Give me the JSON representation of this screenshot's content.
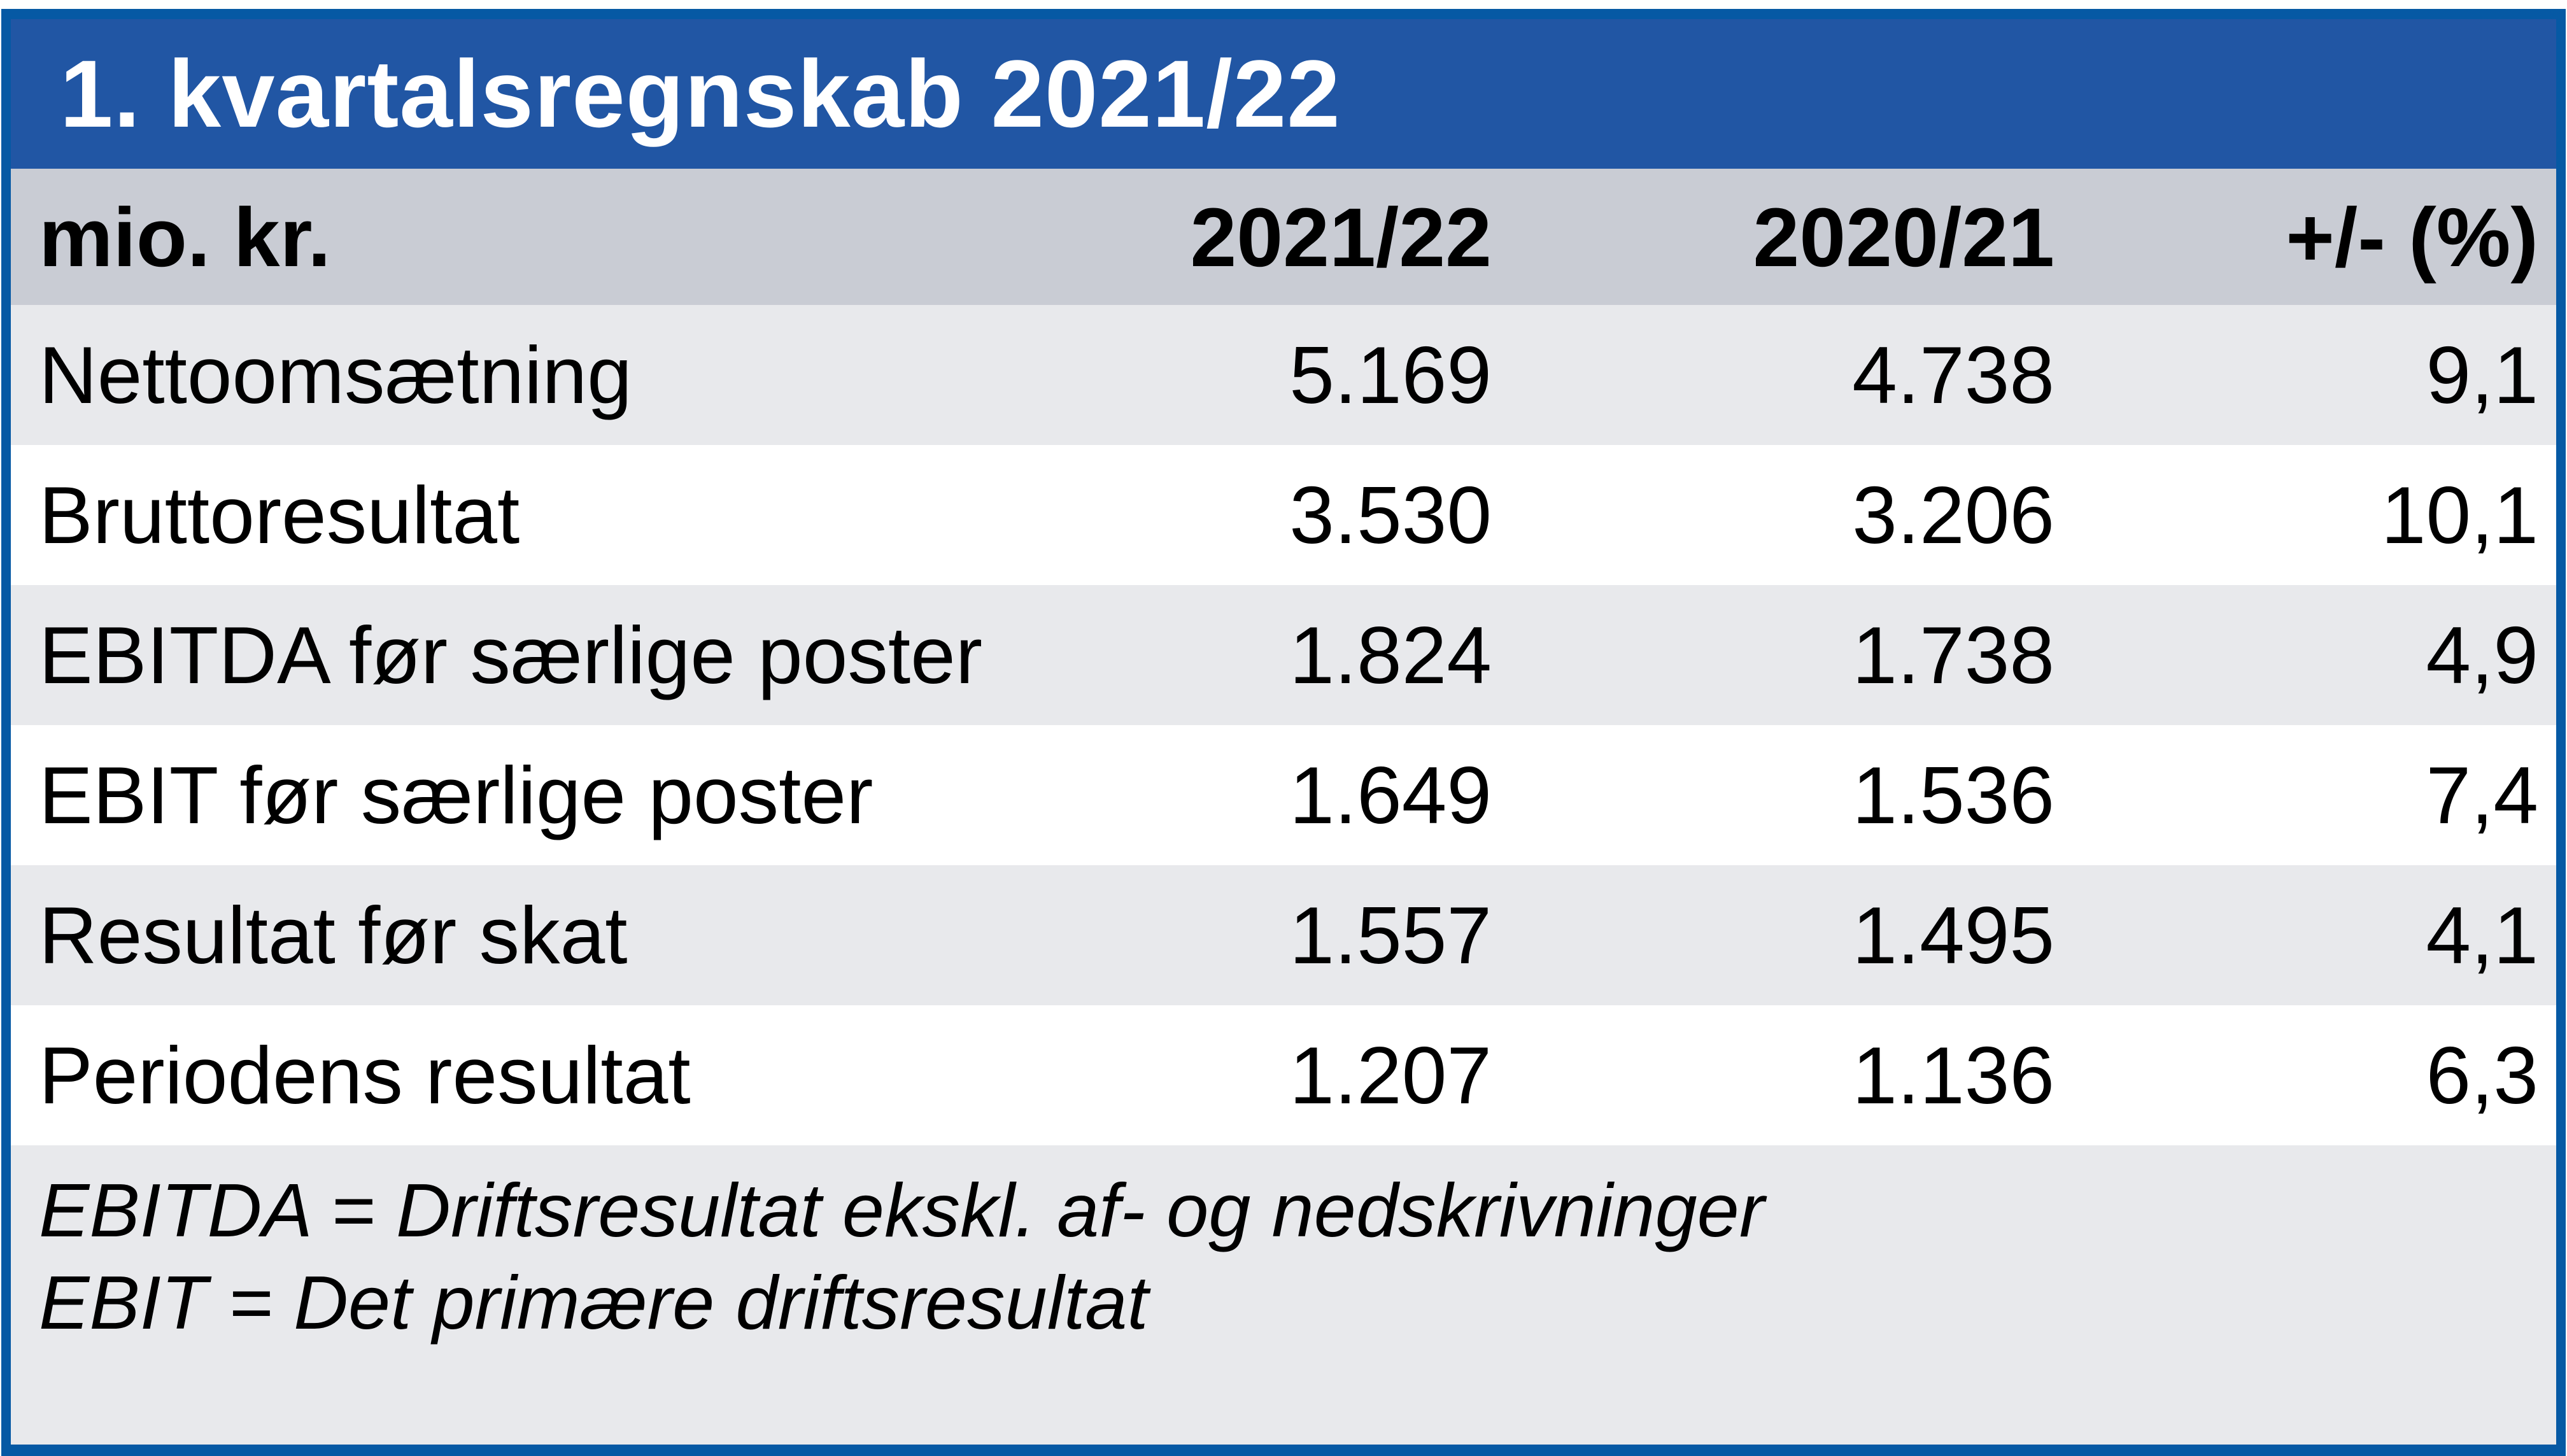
{
  "title": "1. kvartalsregnskab 2021/22",
  "table": {
    "columns": [
      "mio. kr.",
      "2021/22",
      "2020/21",
      "+/- (%)"
    ],
    "rows": [
      {
        "label": "Nettoomsætning",
        "fy2122": "5.169",
        "fy2021": "4.738",
        "change": "9,1"
      },
      {
        "label": "Bruttoresultat",
        "fy2122": "3.530",
        "fy2021": "3.206",
        "change": "10,1"
      },
      {
        "label": "EBITDA før særlige poster",
        "fy2122": "1.824",
        "fy2021": "1.738",
        "change": "4,9"
      },
      {
        "label": "EBIT før særlige poster",
        "fy2122": "1.649",
        "fy2021": "1.536",
        "change": "7,4"
      },
      {
        "label": "Resultat før skat",
        "fy2122": "1.557",
        "fy2021": "1.495",
        "change": "4,1"
      },
      {
        "label": "Periodens resultat",
        "fy2122": "1.207",
        "fy2021": "1.136",
        "change": "6,3"
      }
    ]
  },
  "footnotes": {
    "line1": "EBITDA = Driftsresultat ekskl. af- og nedskrivninger",
    "line2": "EBIT = Det primære driftsresultat"
  },
  "colors": {
    "frame_border_blue": "#0659A4",
    "title_bar_blue": "#2156A4",
    "header_row_gray": "#C9CCD4",
    "shaded_row_gray": "#E8E9EC",
    "plain_row_white": "#FFFFFF",
    "title_text": "#FFFFFF",
    "body_text": "#000000"
  },
  "chart_data": {
    "type": "table",
    "title": "1. kvartalsregnskab 2021/22",
    "unit": "mio. kr.",
    "columns": [
      "mio. kr.",
      "2021/22",
      "2020/21",
      "+/- (%)"
    ],
    "rows": [
      [
        "Nettoomsætning",
        5169,
        4738,
        9.1
      ],
      [
        "Bruttoresultat",
        3530,
        3206,
        10.1
      ],
      [
        "EBITDA før særlige poster",
        1824,
        1738,
        4.9
      ],
      [
        "EBIT før særlige poster",
        1649,
        1536,
        7.4
      ],
      [
        "Resultat før skat",
        1557,
        1495,
        4.1
      ],
      [
        "Periodens resultat",
        1207,
        1136,
        6.3
      ]
    ],
    "notes": [
      "EBITDA = Driftsresultat ekskl. af- og nedskrivninger",
      "EBIT = Det primære driftsresultat"
    ],
    "number_format": "da-DK (thousands '.', decimal ',')"
  }
}
